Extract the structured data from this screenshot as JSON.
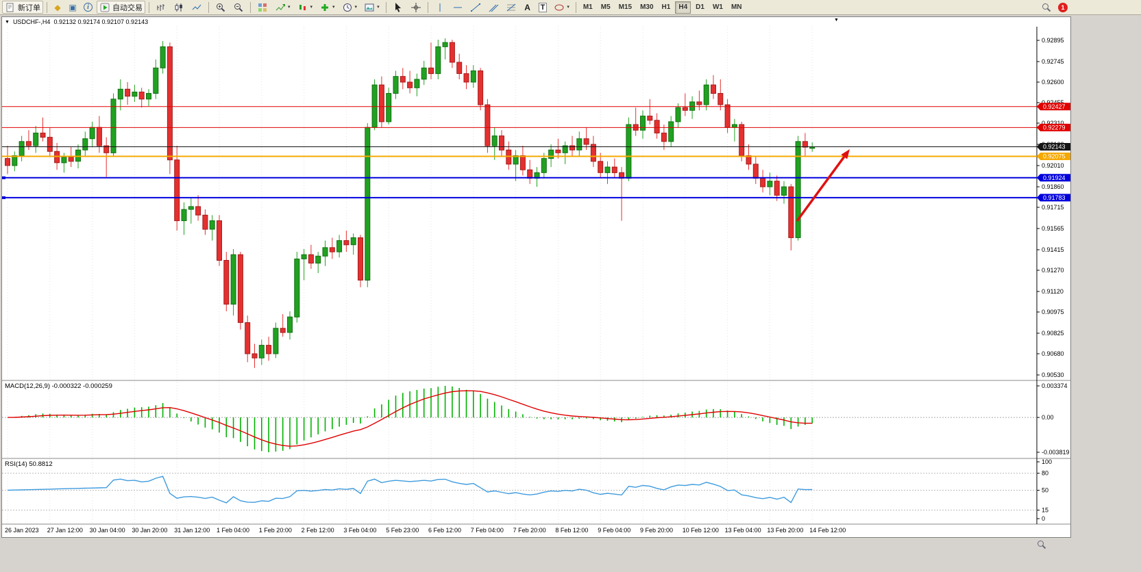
{
  "toolbar": {
    "new_order_label": "新订单",
    "auto_trading_label": "自动交易",
    "text_tool_label": "A",
    "label_tool_label": "T",
    "timeframes": [
      "M1",
      "M5",
      "M15",
      "M30",
      "H1",
      "H4",
      "D1",
      "W1",
      "MN"
    ],
    "active_timeframe": "H4",
    "notification_badge": "1"
  },
  "chart_title": {
    "symbol_timeframe": "USDCHF-,H4",
    "ohlc": "0.92132 0.92174 0.92107 0.92143"
  },
  "chart_data": {
    "type": "candlestick",
    "symbol": "USDCHF-",
    "timeframe": "H4",
    "price_axis_ticks": [
      "0.92895",
      "0.92745",
      "0.92600",
      "0.92455",
      "0.92310",
      "0.92160",
      "0.92010",
      "0.91860",
      "0.91715",
      "0.91565",
      "0.91415",
      "0.91270",
      "0.91120",
      "0.90975",
      "0.90825",
      "0.90680",
      "0.90530"
    ],
    "price_axis_range": [
      0.9053,
      0.92895
    ],
    "time_labels": [
      "26 Jan 2023",
      "27 Jan 12:00",
      "30 Jan 04:00",
      "30 Jan 20:00",
      "31 Jan 12:00",
      "1 Feb 04:00",
      "1 Feb 20:00",
      "2 Feb 12:00",
      "3 Feb 04:00",
      "5 Feb 23:00",
      "6 Feb 12:00",
      "7 Feb 04:00",
      "7 Feb 20:00",
      "8 Feb 12:00",
      "9 Feb 04:00",
      "9 Feb 20:00",
      "10 Feb 12:00",
      "13 Feb 04:00",
      "13 Feb 20:00",
      "14 Feb 12:00"
    ],
    "candles_ohlc": [
      [
        0.9206,
        0.9215,
        0.9195,
        0.9201
      ],
      [
        0.9201,
        0.9211,
        0.9197,
        0.9208
      ],
      [
        0.9208,
        0.9222,
        0.9204,
        0.9218
      ],
      [
        0.9218,
        0.9226,
        0.9212,
        0.9215
      ],
      [
        0.9215,
        0.9229,
        0.921,
        0.9224
      ],
      [
        0.9224,
        0.9235,
        0.9218,
        0.9221
      ],
      [
        0.9221,
        0.9228,
        0.9207,
        0.9211
      ],
      [
        0.9211,
        0.9217,
        0.9198,
        0.9203
      ],
      [
        0.9203,
        0.921,
        0.9196,
        0.9207
      ],
      [
        0.9207,
        0.9214,
        0.92,
        0.9204
      ],
      [
        0.9204,
        0.9216,
        0.9199,
        0.9212
      ],
      [
        0.9212,
        0.9225,
        0.9208,
        0.922
      ],
      [
        0.922,
        0.9232,
        0.9214,
        0.9228
      ],
      [
        0.9228,
        0.9236,
        0.921,
        0.9215
      ],
      [
        0.9215,
        0.9221,
        0.9193,
        0.921
      ],
      [
        0.921,
        0.9252,
        0.9208,
        0.9248
      ],
      [
        0.9248,
        0.9262,
        0.924,
        0.9255
      ],
      [
        0.9255,
        0.926,
        0.9244,
        0.925
      ],
      [
        0.925,
        0.9258,
        0.9246,
        0.9253
      ],
      [
        0.9253,
        0.9256,
        0.9242,
        0.9248
      ],
      [
        0.9248,
        0.9255,
        0.9243,
        0.9252
      ],
      [
        0.9252,
        0.9276,
        0.9248,
        0.927
      ],
      [
        0.927,
        0.9289,
        0.9266,
        0.9285
      ],
      [
        0.9285,
        0.9288,
        0.9195,
        0.9205
      ],
      [
        0.9205,
        0.9215,
        0.9155,
        0.9162
      ],
      [
        0.9162,
        0.9175,
        0.9152,
        0.917
      ],
      [
        0.917,
        0.9178,
        0.916,
        0.9172
      ],
      [
        0.9172,
        0.918,
        0.9162,
        0.9166
      ],
      [
        0.9166,
        0.917,
        0.9152,
        0.9156
      ],
      [
        0.9156,
        0.9166,
        0.9148,
        0.9162
      ],
      [
        0.9162,
        0.9166,
        0.913,
        0.9134
      ],
      [
        0.9134,
        0.914,
        0.9098,
        0.9103
      ],
      [
        0.9103,
        0.9142,
        0.9095,
        0.9138
      ],
      [
        0.9138,
        0.914,
        0.9085,
        0.909
      ],
      [
        0.909,
        0.9095,
        0.9062,
        0.9068
      ],
      [
        0.9068,
        0.9075,
        0.9058,
        0.9065
      ],
      [
        0.9065,
        0.9078,
        0.906,
        0.9074
      ],
      [
        0.9074,
        0.908,
        0.9063,
        0.9068
      ],
      [
        0.9068,
        0.909,
        0.9065,
        0.9086
      ],
      [
        0.9086,
        0.9096,
        0.908,
        0.9083
      ],
      [
        0.9083,
        0.9098,
        0.9078,
        0.9094
      ],
      [
        0.9094,
        0.914,
        0.909,
        0.9135
      ],
      [
        0.9135,
        0.9142,
        0.912,
        0.9138
      ],
      [
        0.9138,
        0.9145,
        0.9128,
        0.9132
      ],
      [
        0.9132,
        0.914,
        0.9125,
        0.9137
      ],
      [
        0.9137,
        0.9148,
        0.913,
        0.9143
      ],
      [
        0.9143,
        0.915,
        0.9135,
        0.914
      ],
      [
        0.914,
        0.9152,
        0.9136,
        0.9148
      ],
      [
        0.9148,
        0.9155,
        0.914,
        0.9145
      ],
      [
        0.9145,
        0.9153,
        0.9138,
        0.915
      ],
      [
        0.915,
        0.9152,
        0.9115,
        0.912
      ],
      [
        0.912,
        0.9231,
        0.9115,
        0.9228
      ],
      [
        0.9228,
        0.9262,
        0.9226,
        0.9258
      ],
      [
        0.9258,
        0.9264,
        0.9228,
        0.9232
      ],
      [
        0.9232,
        0.9256,
        0.923,
        0.9252
      ],
      [
        0.9252,
        0.9268,
        0.9248,
        0.9264
      ],
      [
        0.9264,
        0.927,
        0.9255,
        0.926
      ],
      [
        0.926,
        0.9268,
        0.9252,
        0.9256
      ],
      [
        0.9256,
        0.9266,
        0.925,
        0.9262
      ],
      [
        0.9262,
        0.9275,
        0.9258,
        0.927
      ],
      [
        0.927,
        0.9288,
        0.9262,
        0.9266
      ],
      [
        0.9266,
        0.929,
        0.9262,
        0.9285
      ],
      [
        0.9285,
        0.9291,
        0.9276,
        0.9288
      ],
      [
        0.9288,
        0.929,
        0.927,
        0.9274
      ],
      [
        0.9274,
        0.928,
        0.9262,
        0.9266
      ],
      [
        0.9266,
        0.9272,
        0.9255,
        0.926
      ],
      [
        0.926,
        0.9272,
        0.9256,
        0.9268
      ],
      [
        0.9268,
        0.927,
        0.924,
        0.9244
      ],
      [
        0.9244,
        0.9248,
        0.921,
        0.9215
      ],
      [
        0.9215,
        0.9228,
        0.9205,
        0.9222
      ],
      [
        0.9222,
        0.9226,
        0.9208,
        0.9212
      ],
      [
        0.9212,
        0.9218,
        0.9198,
        0.9202
      ],
      [
        0.9202,
        0.9212,
        0.919,
        0.9208
      ],
      [
        0.9208,
        0.9215,
        0.9194,
        0.9198
      ],
      [
        0.9198,
        0.9205,
        0.9188,
        0.9192
      ],
      [
        0.9192,
        0.92,
        0.9186,
        0.9196
      ],
      [
        0.9196,
        0.921,
        0.9192,
        0.9206
      ],
      [
        0.9206,
        0.9216,
        0.92,
        0.9212
      ],
      [
        0.9212,
        0.922,
        0.9206,
        0.921
      ],
      [
        0.921,
        0.9218,
        0.9202,
        0.9215
      ],
      [
        0.9215,
        0.9222,
        0.9208,
        0.9212
      ],
      [
        0.9212,
        0.9225,
        0.9208,
        0.922
      ],
      [
        0.922,
        0.9228,
        0.9212,
        0.9216
      ],
      [
        0.9216,
        0.9222,
        0.92,
        0.9204
      ],
      [
        0.9204,
        0.921,
        0.9192,
        0.9196
      ],
      [
        0.9196,
        0.9204,
        0.9188,
        0.92
      ],
      [
        0.92,
        0.9206,
        0.9192,
        0.9196
      ],
      [
        0.9196,
        0.92,
        0.9162,
        0.9192
      ],
      [
        0.9192,
        0.9235,
        0.919,
        0.923
      ],
      [
        0.923,
        0.9242,
        0.9222,
        0.9226
      ],
      [
        0.9226,
        0.924,
        0.922,
        0.9236
      ],
      [
        0.9236,
        0.9248,
        0.923,
        0.9233
      ],
      [
        0.9233,
        0.9238,
        0.922,
        0.9224
      ],
      [
        0.9224,
        0.923,
        0.9212,
        0.9218
      ],
      [
        0.9218,
        0.9236,
        0.9214,
        0.9232
      ],
      [
        0.9232,
        0.9245,
        0.9228,
        0.9242
      ],
      [
        0.9242,
        0.9252,
        0.9236,
        0.924
      ],
      [
        0.924,
        0.925,
        0.9234,
        0.9246
      ],
      [
        0.9246,
        0.9254,
        0.924,
        0.9244
      ],
      [
        0.9244,
        0.9262,
        0.924,
        0.9258
      ],
      [
        0.9258,
        0.9265,
        0.9248,
        0.9252
      ],
      [
        0.9252,
        0.9262,
        0.924,
        0.9244
      ],
      [
        0.9244,
        0.9248,
        0.9224,
        0.9228
      ],
      [
        0.9228,
        0.9234,
        0.9218,
        0.923
      ],
      [
        0.923,
        0.9232,
        0.9204,
        0.9208
      ],
      [
        0.9208,
        0.9216,
        0.9198,
        0.9202
      ],
      [
        0.9202,
        0.9208,
        0.9188,
        0.9192
      ],
      [
        0.9192,
        0.9198,
        0.9182,
        0.9186
      ],
      [
        0.9186,
        0.9196,
        0.918,
        0.919
      ],
      [
        0.919,
        0.9194,
        0.9176,
        0.918
      ],
      [
        0.918,
        0.919,
        0.9174,
        0.9186
      ],
      [
        0.9186,
        0.9188,
        0.9141,
        0.915
      ],
      [
        0.915,
        0.9222,
        0.9148,
        0.9218
      ],
      [
        0.9218,
        0.9224,
        0.9208,
        0.9214
      ],
      [
        0.92132,
        0.92174,
        0.92107,
        0.92143
      ]
    ],
    "horizontal_lines": [
      {
        "price": 0.92427,
        "label": "0.92427",
        "color": "#e00000",
        "width": 1,
        "handle": false
      },
      {
        "price": 0.92279,
        "label": "0.92279",
        "color": "#e00000",
        "width": 1,
        "handle": false
      },
      {
        "price": 0.92143,
        "label": "0.92143",
        "color": "#151515",
        "width": 1,
        "handle": false
      },
      {
        "price": 0.92075,
        "label": "0.92075",
        "color": "#f5a800",
        "width": 2,
        "handle": false
      },
      {
        "price": 0.91924,
        "label": "0.91924",
        "color": "#0000dd",
        "width": 2,
        "handle": true
      },
      {
        "price": 0.91783,
        "label": "0.91783",
        "color": "#0000dd",
        "width": 2,
        "handle": true
      }
    ],
    "macd": {
      "label": "MACD(12,26,9) -0.000322 -0.000259",
      "fast": 12,
      "slow": 26,
      "signal_period": 9,
      "current_main": -0.000322,
      "current_signal": -0.000259,
      "axis_labels": [
        "0.003374",
        "0.00",
        "-0.003819"
      ]
    },
    "rsi": {
      "label": "RSI(14) 50.8812",
      "period": 14,
      "current": 50.8812,
      "axis_labels": [
        "100",
        "80",
        "50",
        "15",
        "0"
      ],
      "level_lines": [
        80,
        50,
        15
      ]
    },
    "annotation_arrow": {
      "from": [
        1160,
        284
      ],
      "to": [
        1237,
        179
      ],
      "color": "#e01010"
    },
    "colors": {
      "bull": "#21a121",
      "bull_border": "#137013",
      "bear": "#e53030",
      "bear_border": "#a31c1c",
      "macd_hist": "#00b200",
      "macd_signal": "#e00000",
      "rsi_line": "#3e9bde",
      "grid": "#e3e3e3",
      "axis": "#000000"
    }
  }
}
